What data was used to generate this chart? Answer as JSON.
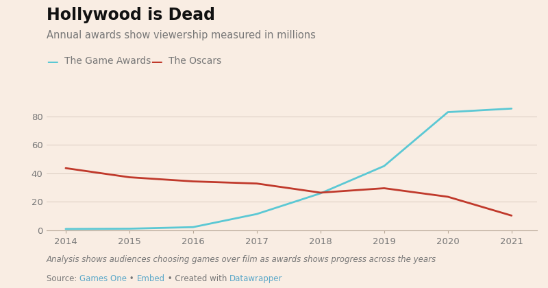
{
  "title": "Hollywood is Dead",
  "subtitle": "Annual awards show viewership measured in millions",
  "footnote": "Analysis shows audiences choosing games over film as awards shows progress across the years",
  "background_color": "#f9ede3",
  "game_awards": {
    "label": "The Game Awards",
    "color": "#5bc8d4",
    "years": [
      2014,
      2015,
      2016,
      2017,
      2018,
      2019,
      2020,
      2021
    ],
    "values": [
      1.0,
      1.2,
      2.3,
      11.5,
      26.0,
      45.2,
      83.0,
      85.5
    ]
  },
  "oscars": {
    "label": "The Oscars",
    "color": "#c0392b",
    "years": [
      2014,
      2015,
      2016,
      2017,
      2018,
      2019,
      2020,
      2021
    ],
    "values": [
      43.7,
      37.3,
      34.4,
      32.9,
      26.5,
      29.6,
      23.6,
      10.4
    ]
  },
  "ylim": [
    0,
    95
  ],
  "yticks": [
    0,
    20,
    40,
    60,
    80
  ],
  "xlim": [
    2013.7,
    2021.4
  ],
  "xticks": [
    2014,
    2015,
    2016,
    2017,
    2018,
    2019,
    2020,
    2021
  ],
  "grid_color": "#d8c9be",
  "axis_color": "#b8a898",
  "text_color": "#777777",
  "title_color": "#111111",
  "link_color": "#5ba8c9",
  "bullet_color": "#aaaaaa",
  "title_fontsize": 17,
  "subtitle_fontsize": 10.5,
  "legend_fontsize": 10,
  "tick_fontsize": 9.5,
  "footnote_fontsize": 8.5,
  "source_fontsize": 8.5
}
